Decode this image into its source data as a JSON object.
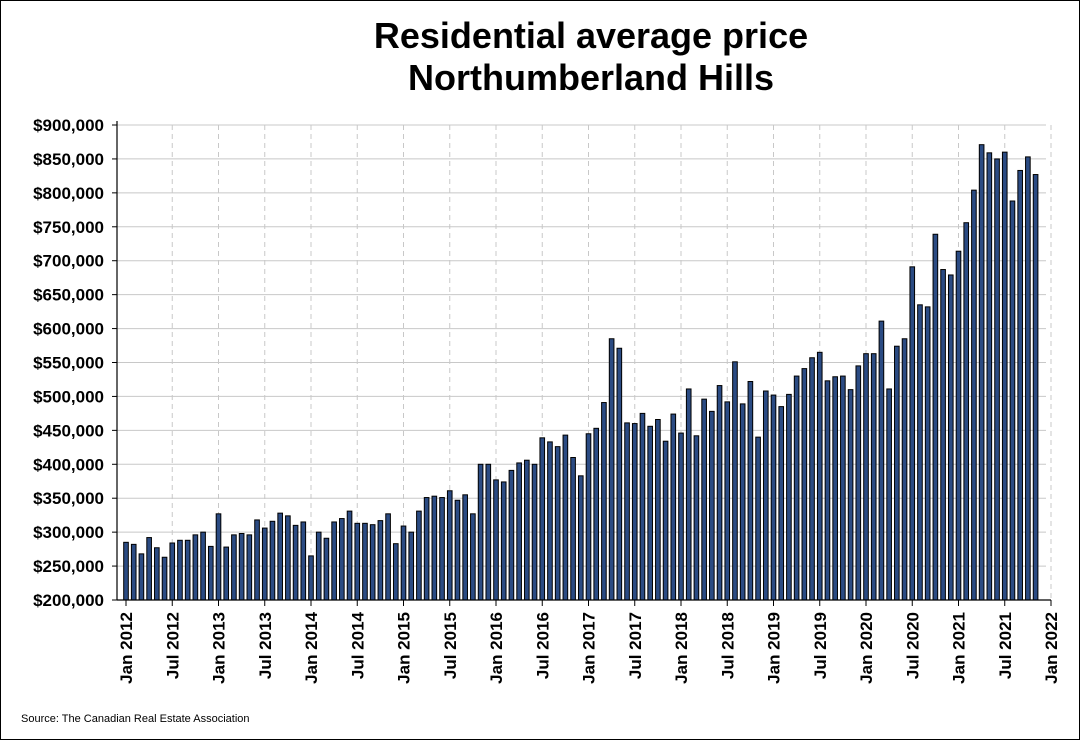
{
  "chart_data": {
    "type": "bar",
    "title": [
      "Residential average price",
      "Northumberland Hills"
    ],
    "source": "Source: The Canadian Real Estate Association",
    "colors": {
      "bar_fill": "#2b4b83",
      "bar_stroke": "#000000",
      "grid": "#c8c8c8"
    },
    "ylim": [
      200000,
      900000
    ],
    "yticks": [
      200000,
      250000,
      300000,
      350000,
      400000,
      450000,
      500000,
      550000,
      600000,
      650000,
      700000,
      750000,
      800000,
      850000,
      900000
    ],
    "ytick_labels": [
      "$200,000",
      "$250,000",
      "$300,000",
      "$350,000",
      "$400,000",
      "$450,000",
      "$500,000",
      "$550,000",
      "$600,000",
      "$650,000",
      "$700,000",
      "$750,000",
      "$800,000",
      "$850,000",
      "$900,000"
    ],
    "xticks": [
      "2012-01",
      "2012-07",
      "2013-01",
      "2013-07",
      "2014-01",
      "2014-07",
      "2015-01",
      "2015-07",
      "2016-01",
      "2016-07",
      "2017-01",
      "2017-07",
      "2018-01",
      "2018-07",
      "2019-01",
      "2019-07",
      "2020-01",
      "2020-07",
      "2021-01",
      "2021-07",
      "2022-01"
    ],
    "xtick_labels": [
      "Jan 2012",
      "Jul 2012",
      "Jan 2013",
      "Jul 2013",
      "Jan 2014",
      "Jul 2014",
      "Jan 2015",
      "Jul 2015",
      "Jan 2016",
      "Jul 2016",
      "Jan 2017",
      "Jul 2017",
      "Jan 2018",
      "Jul 2018",
      "Jan 2019",
      "Jul 2019",
      "Jan 2020",
      "Jul 2020",
      "Jan 2021",
      "Jul 2021",
      "Jan 2022"
    ],
    "x_start": "2012-01",
    "grid": true,
    "legend": "none",
    "values": [
      285000,
      282000,
      268000,
      292000,
      277000,
      263000,
      284000,
      288000,
      288000,
      296000,
      300000,
      279000,
      327000,
      278000,
      296000,
      298000,
      296000,
      318000,
      306000,
      316000,
      328000,
      324000,
      310000,
      315000,
      265000,
      300000,
      291000,
      315000,
      320000,
      331000,
      313000,
      313000,
      311000,
      317000,
      327000,
      283000,
      309000,
      300000,
      331000,
      351000,
      353000,
      351000,
      361000,
      347000,
      355000,
      327000,
      400000,
      400000,
      377000,
      374000,
      391000,
      402000,
      406000,
      400000,
      439000,
      433000,
      426000,
      443000,
      410000,
      383000,
      445000,
      453000,
      491000,
      585000,
      571000,
      461000,
      460000,
      475000,
      456000,
      466000,
      434000,
      474000,
      446000,
      511000,
      442000,
      496000,
      478000,
      516000,
      492000,
      551000,
      489000,
      522000,
      440000,
      508000,
      502000,
      485000,
      503000,
      530000,
      541000,
      557000,
      565000,
      523000,
      529000,
      530000,
      510000,
      545000,
      563000,
      563000,
      611000,
      511000,
      574000,
      585000,
      691000,
      635000,
      632000,
      739000,
      687000,
      679000,
      714000,
      756000,
      804000,
      871000,
      859000,
      850000,
      860000,
      788000,
      833000,
      853000,
      827000
    ]
  }
}
